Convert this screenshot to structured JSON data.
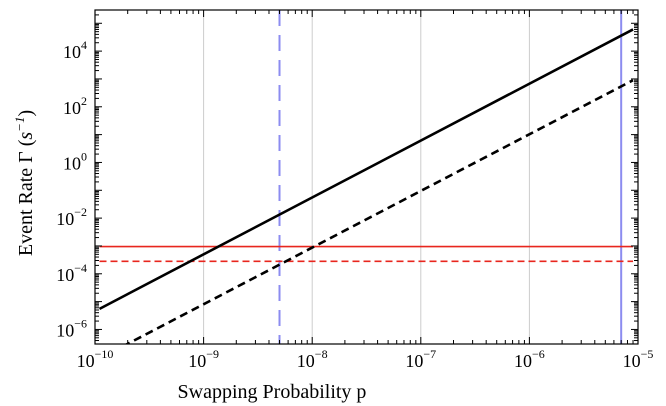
{
  "chart_data": {
    "type": "line",
    "xlabel": "Swapping Probability p",
    "ylabel_prefix": "Event Rate Γ (",
    "ylabel_unit": "s",
    "ylabel_unit_exp": "−1",
    "ylabel_suffix": ")",
    "x_scale": "log",
    "y_scale": "log",
    "xlim": [
      1e-10,
      1e-05
    ],
    "ylim": [
      3e-07,
      300000.0
    ],
    "grid": "vertical",
    "x_ticks": [
      {
        "base": "10",
        "exp": "−10",
        "value": 1e-10
      },
      {
        "base": "10",
        "exp": "−9",
        "value": 1e-09
      },
      {
        "base": "10",
        "exp": "−8",
        "value": 1e-08
      },
      {
        "base": "10",
        "exp": "−7",
        "value": 1e-07
      },
      {
        "base": "10",
        "exp": "−6",
        "value": 1e-06
      },
      {
        "base": "10",
        "exp": "−5",
        "value": 1e-05
      }
    ],
    "y_ticks": [
      {
        "base": "10",
        "exp": "4",
        "value": 10000.0
      },
      {
        "base": "10",
        "exp": "2",
        "value": 100.0
      },
      {
        "base": "10",
        "exp": "0",
        "value": 1
      },
      {
        "base": "10",
        "exp": "−2",
        "value": 0.01
      },
      {
        "base": "10",
        "exp": "−4",
        "value": 0.0001
      },
      {
        "base": "10",
        "exp": "−6",
        "value": 1e-06
      }
    ],
    "series": [
      {
        "style": "solid",
        "color": "#000000",
        "x": [
          1.1e-10,
          9e-06
        ],
        "y": [
          5.5e-06,
          60000.0
        ]
      },
      {
        "style": "dashed",
        "color": "#000000",
        "x": [
          1.1e-10,
          9e-06
        ],
        "y": [
          9e-08,
          900.0
        ]
      }
    ],
    "hlines": [
      {
        "style": "solid",
        "color": "#e8261e",
        "y": 0.00095,
        "x": [
          1.1e-10,
          9e-06
        ]
      },
      {
        "style": "dashed",
        "color": "#e8261e",
        "y": 0.00028,
        "x": [
          1.1e-10,
          9e-06
        ]
      }
    ],
    "vlines": [
      {
        "style": "dashed",
        "color": "#8c8cf0",
        "x": 5e-09
      },
      {
        "style": "solid",
        "color": "#8c8cf0",
        "x": 7e-06
      }
    ]
  }
}
